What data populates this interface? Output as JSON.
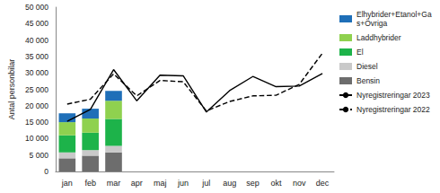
{
  "chart_data": {
    "type": "bar",
    "y_label": "Antal personbilar",
    "categories": [
      "jan",
      "feb",
      "mar",
      "apr",
      "maj",
      "jun",
      "jul",
      "aug",
      "sep",
      "okt",
      "nov",
      "dec"
    ],
    "stacked": true,
    "grid": false,
    "legend": "right",
    "ylim": [
      0,
      50000
    ],
    "yticks": [
      0,
      {
        "value": 5000,
        "label": "5 000"
      },
      {
        "value": 10000,
        "label": "10 000"
      },
      {
        "value": 15000,
        "label": "15 000"
      },
      {
        "value": 20000,
        "label": "20 000"
      },
      {
        "value": 25000,
        "label": "25 000"
      },
      {
        "value": 30000,
        "label": "30 000"
      },
      {
        "value": 35000,
        "label": "35 000"
      },
      {
        "value": 40000,
        "label": "40 000"
      },
      {
        "value": 45000,
        "label": "45 000"
      },
      {
        "value": 50000,
        "label": "50 000"
      }
    ],
    "series": [
      {
        "name": "Bensin",
        "type": "bar",
        "color": "#6d6d6d",
        "values": [
          4000,
          4800,
          5800,
          null,
          null,
          null,
          null,
          null,
          null,
          null,
          null,
          null
        ]
      },
      {
        "name": "Diesel",
        "type": "bar",
        "color": "#c9c9c9",
        "values": [
          1800,
          1700,
          2000,
          null,
          null,
          null,
          null,
          null,
          null,
          null,
          null,
          null
        ]
      },
      {
        "name": "El",
        "type": "bar",
        "color": "#1db34a",
        "values": [
          5200,
          5300,
          8200,
          null,
          null,
          null,
          null,
          null,
          null,
          null,
          null,
          null
        ]
      },
      {
        "name": "Laddhybrider",
        "type": "bar",
        "color": "#8fd14f",
        "values": [
          4000,
          4300,
          5500,
          null,
          null,
          null,
          null,
          null,
          null,
          null,
          null,
          null
        ]
      },
      {
        "name": "Elhybrider+Etanol+Gas+Övriga",
        "type": "bar",
        "color": "#1f6fb8",
        "values": [
          2700,
          3000,
          3000,
          null,
          null,
          null,
          null,
          null,
          null,
          null,
          null,
          null
        ]
      },
      {
        "name": "Nyregistreringar 2023",
        "type": "line",
        "color": "#000000",
        "line_style": "solid",
        "values": [
          15300,
          18900,
          31000,
          21500,
          29300,
          29100,
          18100,
          24600,
          28900,
          25800,
          26000,
          29800
        ]
      },
      {
        "name": "Nyregistreringar 2022",
        "type": "line",
        "color": "#000000",
        "line_style": "dashed",
        "values": [
          20500,
          22000,
          29700,
          23000,
          27700,
          27300,
          18400,
          21300,
          23000,
          23200,
          26500,
          36000
        ]
      }
    ]
  }
}
